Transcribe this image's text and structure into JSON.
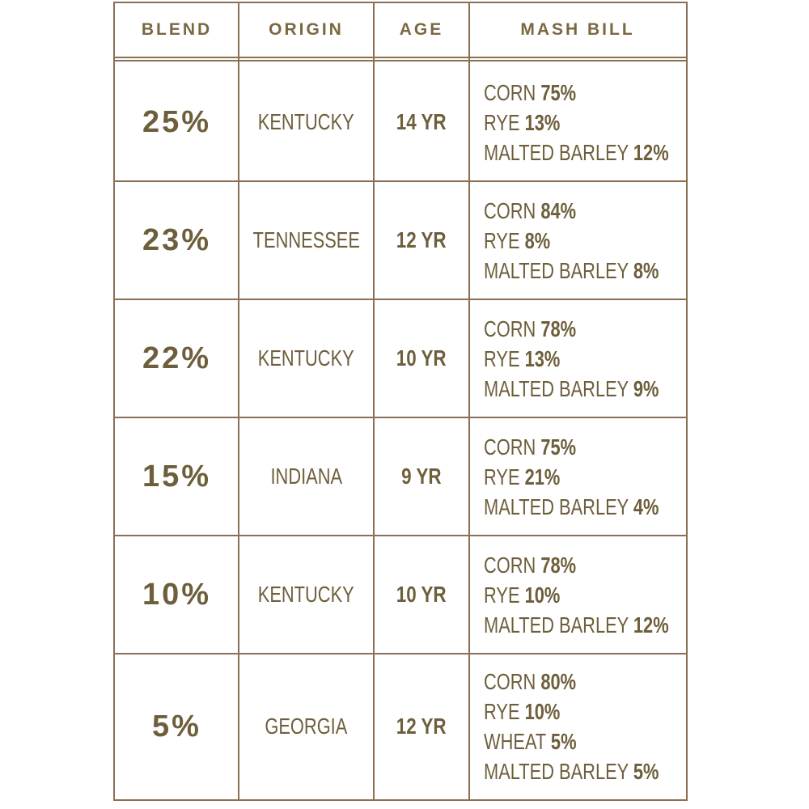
{
  "table": {
    "header": [
      "BLEND",
      "ORIGIN",
      "AGE",
      "MASH BILL"
    ],
    "rows": [
      {
        "blend": "25%",
        "origin": "KENTUCKY",
        "age": "14 YR",
        "mash_bill": [
          {
            "grain": "CORN",
            "pct": "75%"
          },
          {
            "grain": "RYE",
            "pct": "13%"
          },
          {
            "grain": "MALTED BARLEY",
            "pct": "12%"
          }
        ]
      },
      {
        "blend": "23%",
        "origin": "TENNESSEE",
        "age": "12 YR",
        "mash_bill": [
          {
            "grain": "CORN",
            "pct": "84%"
          },
          {
            "grain": "RYE",
            "pct": "8%"
          },
          {
            "grain": "MALTED BARLEY",
            "pct": "8%"
          }
        ]
      },
      {
        "blend": "22%",
        "origin": "KENTUCKY",
        "age": "10 YR",
        "mash_bill": [
          {
            "grain": "CORN",
            "pct": "78%"
          },
          {
            "grain": "RYE",
            "pct": "13%"
          },
          {
            "grain": "MALTED BARLEY",
            "pct": "9%"
          }
        ]
      },
      {
        "blend": "15%",
        "origin": "INDIANA",
        "age": "9 YR",
        "mash_bill": [
          {
            "grain": "CORN",
            "pct": "75%"
          },
          {
            "grain": "RYE",
            "pct": "21%"
          },
          {
            "grain": "MALTED BARLEY",
            "pct": "4%"
          }
        ]
      },
      {
        "blend": "10%",
        "origin": "KENTUCKY",
        "age": "10 YR",
        "mash_bill": [
          {
            "grain": "CORN",
            "pct": "78%"
          },
          {
            "grain": "RYE",
            "pct": "10%"
          },
          {
            "grain": "MALTED BARLEY",
            "pct": "12%"
          }
        ]
      },
      {
        "blend": "5%",
        "origin": "GEORGIA",
        "age": "12 YR",
        "mash_bill": [
          {
            "grain": "CORN",
            "pct": "80%"
          },
          {
            "grain": "RYE",
            "pct": "10%"
          },
          {
            "grain": "WHEAT",
            "pct": "5%"
          },
          {
            "grain": "MALTED BARLEY",
            "pct": "5%"
          }
        ]
      }
    ]
  }
}
